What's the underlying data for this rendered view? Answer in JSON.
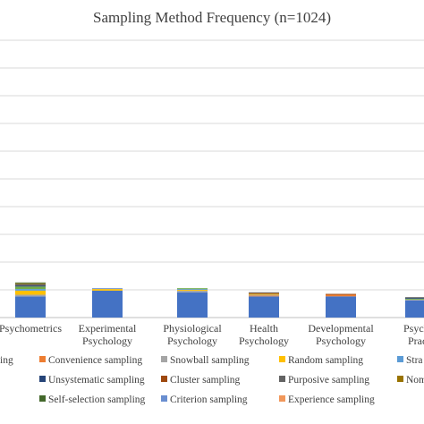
{
  "chart_data": {
    "type": "bar",
    "stacked": true,
    "title": "Sampling Method Frequency (n=1024)",
    "categories": [
      [
        "Psychometrics"
      ],
      [
        "Experimental",
        "Psychology"
      ],
      [
        "Physiological",
        "Psychology"
      ],
      [
        "Health",
        "Psychology"
      ],
      [
        "Developmental",
        "Psychology"
      ],
      [
        "Psychol",
        "Practi"
      ]
    ],
    "ylim": [
      0,
      340
    ],
    "grid": true,
    "legend_position": "bottom",
    "series": [
      {
        "name": "",
        "color": "#4472C4",
        "values": [
          26,
          33,
          31,
          26,
          26,
          21
        ]
      },
      {
        "name": "Convenience sampling",
        "color": "#ED7D31",
        "values": [
          0,
          0,
          0,
          1,
          2,
          0
        ]
      },
      {
        "name": "Snowball sampling",
        "color": "#A5A5A5",
        "values": [
          2,
          0,
          2,
          1,
          0,
          1
        ]
      },
      {
        "name": "Random sampling",
        "color": "#FFC000",
        "values": [
          5,
          2,
          1,
          1,
          0,
          0
        ]
      },
      {
        "name": "Stra",
        "color": "#5B9BD5",
        "values": [
          2,
          0,
          1,
          0,
          0,
          0
        ]
      },
      {
        "name": "",
        "color": "#70AD47",
        "values": [
          3,
          0,
          1,
          0,
          0,
          1
        ]
      },
      {
        "name": "Unsystematic sampling",
        "color": "#264478",
        "values": [
          1,
          0,
          0,
          0,
          0,
          1
        ]
      },
      {
        "name": "Cluster sampling",
        "color": "#9E480E",
        "values": [
          0,
          0,
          0,
          1,
          1,
          0
        ]
      },
      {
        "name": "Purposive sampling",
        "color": "#636363",
        "values": [
          2,
          0,
          0,
          1,
          0,
          1
        ]
      },
      {
        "name": "Nom",
        "color": "#997300",
        "values": [
          1,
          0,
          0,
          0,
          0,
          0
        ]
      },
      {
        "name": "Self-selection sampling",
        "color": "#43682B",
        "values": [
          1,
          0,
          0,
          0,
          0,
          0
        ]
      },
      {
        "name": "Criterion sampling",
        "color": "#698ED0",
        "values": [
          0,
          1,
          0,
          0,
          0,
          0
        ]
      },
      {
        "name": "Experience sampling",
        "color": "#F1975A",
        "values": [
          0,
          0,
          0,
          0,
          0,
          0
        ]
      }
    ],
    "legend": [
      {
        "label": "",
        "color": "#4472C4"
      },
      {
        "label": "Convenience sampling",
        "color": "#ED7D31"
      },
      {
        "label": "Snowball sampling",
        "color": "#A5A5A5"
      },
      {
        "label": "Random sampling",
        "color": "#FFC000"
      },
      {
        "label": "Stra",
        "color": "#5B9BD5"
      },
      {
        "label": "ing",
        "color": ""
      },
      {
        "label": "Unsystematic sampling",
        "color": "#264478"
      },
      {
        "label": "Cluster sampling",
        "color": "#9E480E"
      },
      {
        "label": "Purposive sampling",
        "color": "#636363"
      },
      {
        "label": "Nom",
        "color": "#997300"
      },
      {
        "label": "Self-selection sampling",
        "color": "#43682B"
      },
      {
        "label": "Criterion sampling",
        "color": "#698ED0"
      },
      {
        "label": "Experience sampling",
        "color": "#F1975A"
      }
    ]
  }
}
